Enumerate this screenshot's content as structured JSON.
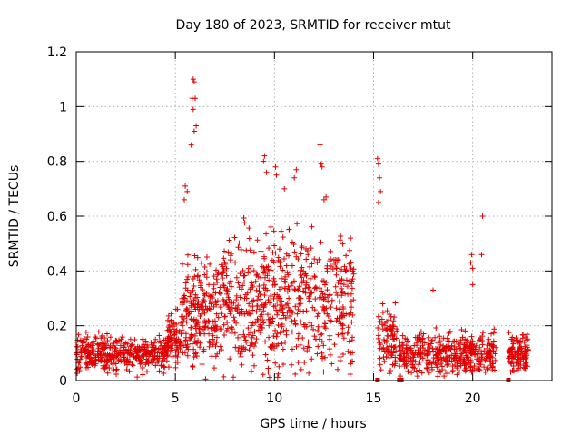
{
  "chart_data": {
    "type": "scatter",
    "title": "Day 180 of 2023, SRMTID for receiver mtut",
    "xlabel": "GPS time / hours",
    "ylabel": "SRMTID / TECUs",
    "xlim": [
      0,
      24
    ],
    "ylim": [
      0,
      1.2
    ],
    "xticks": [
      0,
      5,
      10,
      15,
      20
    ],
    "xtick_labels": [
      "0",
      "5",
      "10",
      "15",
      "20"
    ],
    "yticks": [
      0,
      0.2,
      0.4,
      0.6,
      0.8,
      1,
      1.2
    ],
    "ytick_labels": [
      "0",
      "0.2",
      "0.4",
      "0.6",
      "0.8",
      "1",
      "1.2"
    ],
    "grid": true,
    "marker": "+",
    "series": [
      {
        "name": "SRMTID",
        "color": "#e00000",
        "segments": [
          {
            "x_start": 0.0,
            "x_end": 4.6,
            "y_base": 0.1,
            "y_spread": 0.07,
            "count": 380
          },
          {
            "x_start": 4.6,
            "x_end": 5.3,
            "y_base": 0.15,
            "y_spread": 0.1,
            "count": 80
          },
          {
            "x_start": 5.3,
            "x_end": 7.3,
            "y_base": 0.25,
            "y_spread": 0.2,
            "count": 220
          },
          {
            "x_start": 7.3,
            "x_end": 14.0,
            "y_base": 0.28,
            "y_spread": 0.26,
            "count": 620
          },
          {
            "x_start": 15.2,
            "x_end": 16.2,
            "y_base": 0.15,
            "y_spread": 0.12,
            "count": 90
          },
          {
            "x_start": 16.3,
            "x_end": 21.2,
            "y_base": 0.1,
            "y_spread": 0.08,
            "count": 420
          },
          {
            "x_start": 21.8,
            "x_end": 22.8,
            "y_base": 0.1,
            "y_spread": 0.08,
            "count": 110
          }
        ],
        "peaks": [
          {
            "x": 5.9,
            "y": 1.1
          },
          {
            "x": 5.95,
            "y": 1.09
          },
          {
            "x": 5.85,
            "y": 1.03
          },
          {
            "x": 6.0,
            "y": 1.03
          },
          {
            "x": 5.9,
            "y": 0.99
          },
          {
            "x": 6.05,
            "y": 0.93
          },
          {
            "x": 5.95,
            "y": 0.91
          },
          {
            "x": 5.8,
            "y": 0.86
          },
          {
            "x": 5.5,
            "y": 0.71
          },
          {
            "x": 5.6,
            "y": 0.69
          },
          {
            "x": 5.45,
            "y": 0.66
          },
          {
            "x": 9.5,
            "y": 0.82
          },
          {
            "x": 9.45,
            "y": 0.8
          },
          {
            "x": 9.6,
            "y": 0.76
          },
          {
            "x": 10.05,
            "y": 0.78
          },
          {
            "x": 10.1,
            "y": 0.75
          },
          {
            "x": 10.5,
            "y": 0.7
          },
          {
            "x": 11.1,
            "y": 0.77
          },
          {
            "x": 11.0,
            "y": 0.74
          },
          {
            "x": 12.3,
            "y": 0.86
          },
          {
            "x": 12.35,
            "y": 0.79
          },
          {
            "x": 12.4,
            "y": 0.78
          },
          {
            "x": 12.5,
            "y": 0.66
          },
          {
            "x": 12.6,
            "y": 0.67
          },
          {
            "x": 15.2,
            "y": 0.81
          },
          {
            "x": 15.25,
            "y": 0.79
          },
          {
            "x": 15.3,
            "y": 0.74
          },
          {
            "x": 15.35,
            "y": 0.69
          },
          {
            "x": 15.25,
            "y": 0.65
          },
          {
            "x": 20.5,
            "y": 0.6
          },
          {
            "x": 19.95,
            "y": 0.46
          },
          {
            "x": 20.45,
            "y": 0.46
          },
          {
            "x": 19.9,
            "y": 0.43
          },
          {
            "x": 20.0,
            "y": 0.41
          },
          {
            "x": 18.0,
            "y": 0.33
          },
          {
            "x": 20.0,
            "y": 0.35
          }
        ],
        "zero_markers": [
          {
            "x": 15.2,
            "y": 0
          },
          {
            "x": 16.3,
            "y": 0
          },
          {
            "x": 16.4,
            "y": 0
          },
          {
            "x": 21.8,
            "y": 0
          }
        ]
      }
    ]
  }
}
